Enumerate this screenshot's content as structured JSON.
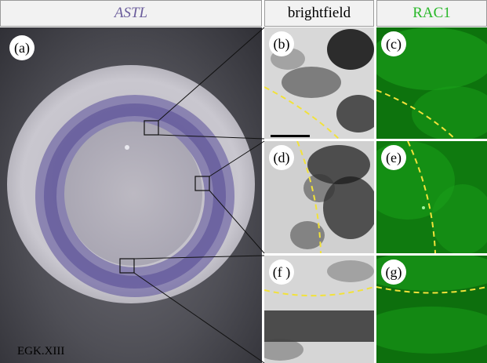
{
  "headers": {
    "astl": "ASTL",
    "brightfield": "brightfield",
    "rac1": "RAC1"
  },
  "panels": {
    "a": {
      "label": "(a)",
      "caption": "EGK.XIII"
    },
    "b": {
      "label": "(b)"
    },
    "c": {
      "label": "(c)"
    },
    "d": {
      "label": "(d)"
    },
    "e": {
      "label": "(e)"
    },
    "f": {
      "label": "(f )"
    },
    "g": {
      "label": "(g)"
    }
  },
  "colors": {
    "astl_header": "#6b5d9c",
    "rac1_header": "#28b828",
    "stain": "#4a3f8e",
    "dashed_boundary": "#f2e23a",
    "fluorescence": "#1aa11a"
  }
}
